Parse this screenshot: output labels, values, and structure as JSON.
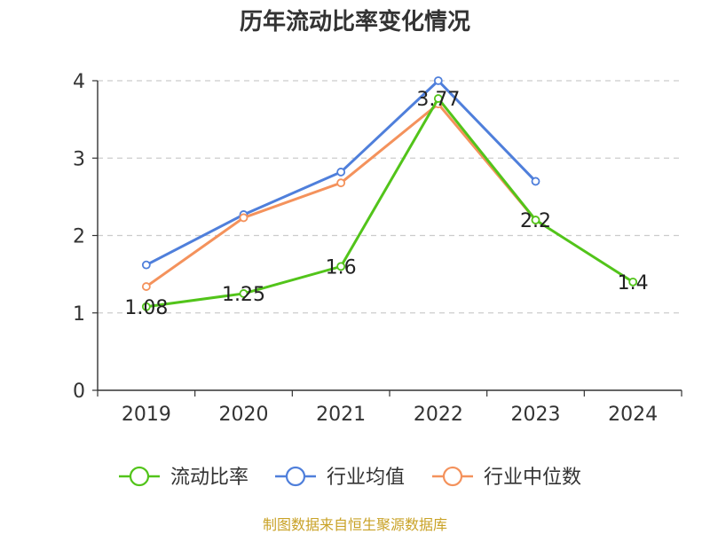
{
  "chart_data": {
    "type": "line",
    "title": "历年流动比率变化情况",
    "categories": [
      "2019",
      "2020",
      "2021",
      "2022",
      "2023",
      "2024"
    ],
    "ylim": [
      0,
      4
    ],
    "yticks": [
      0,
      1,
      2,
      3,
      4
    ],
    "grid": true,
    "legend_position": "bottom",
    "series": [
      {
        "name": "流动比率",
        "color": "#52c41a",
        "values": [
          1.08,
          1.25,
          1.6,
          3.77,
          2.2,
          1.4
        ],
        "labels": [
          "1.08",
          "1.25",
          "1.6",
          "3.77",
          "2.2",
          "1.4"
        ]
      },
      {
        "name": "行业均值",
        "color": "#4f7fdb",
        "values": [
          1.62,
          2.27,
          2.82,
          4.0,
          2.7,
          null
        ]
      },
      {
        "name": "行业中位数",
        "color": "#f4925c",
        "values": [
          1.34,
          2.23,
          2.68,
          3.7,
          2.2,
          null
        ]
      }
    ]
  },
  "source_note": "制图数据来自恒生聚源数据库"
}
